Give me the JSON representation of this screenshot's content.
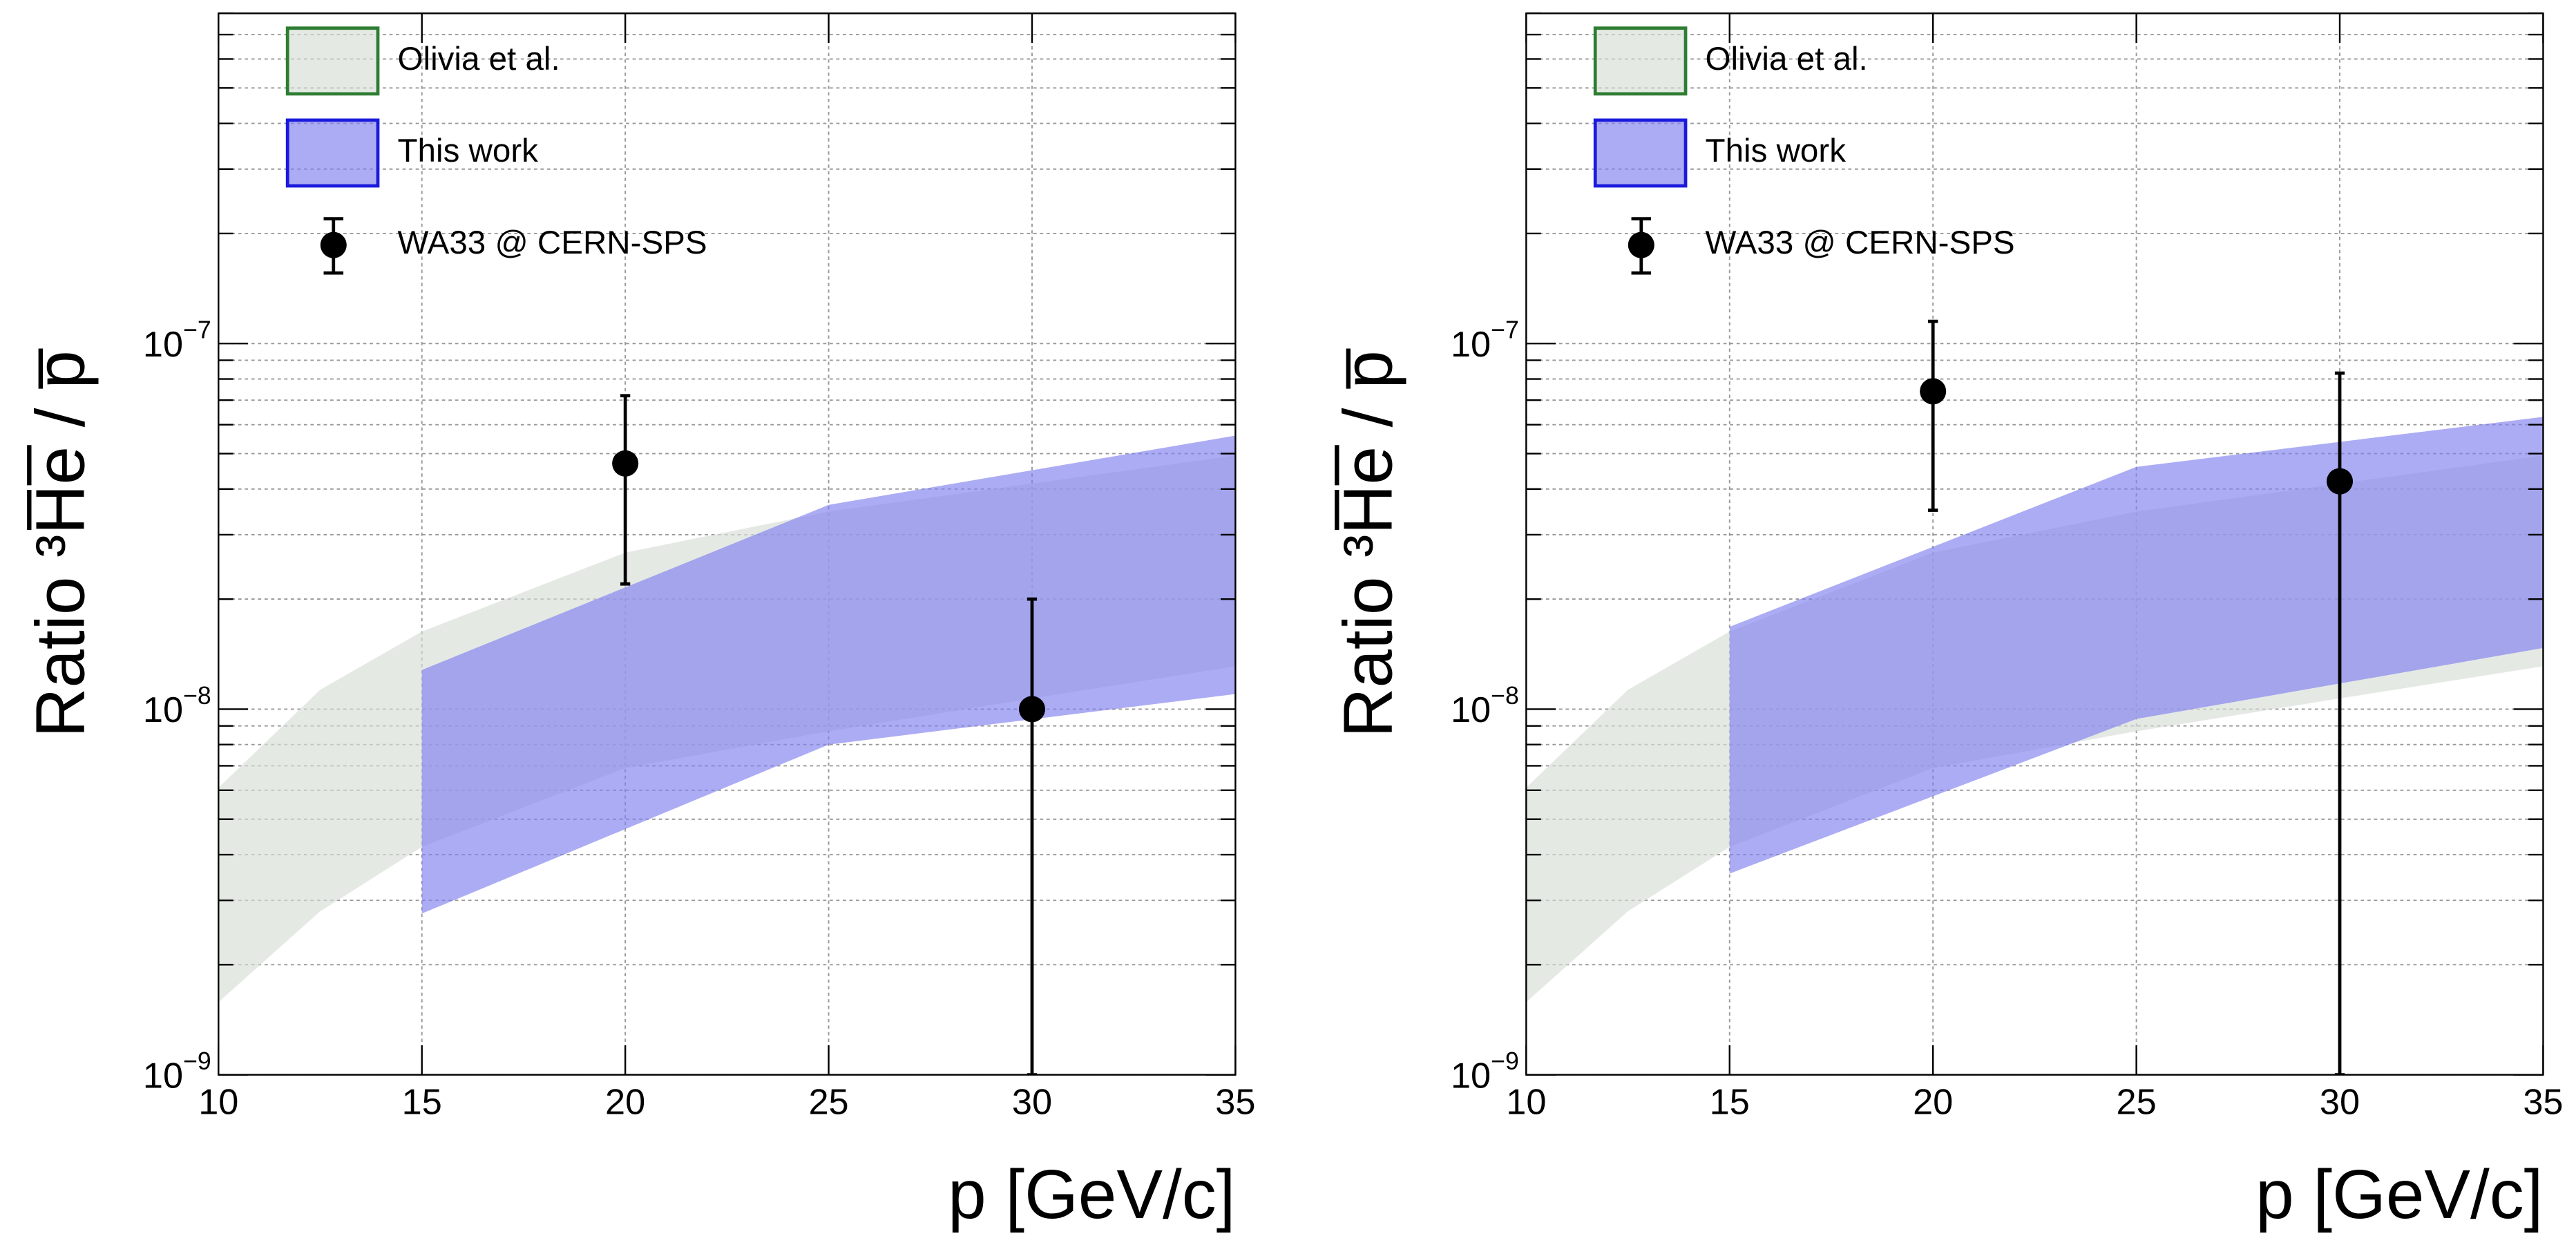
{
  "chart_data": [
    {
      "type": "band",
      "log_y": true,
      "grid": true,
      "xlabel": "p [GeV/c]",
      "ylabel": "Ratio  ³H̅e̅ / p̅",
      "xlim": [
        10,
        35
      ],
      "ylim": [
        1e-09,
        8e-07
      ],
      "xticks": [
        10,
        15,
        20,
        25,
        30,
        35
      ],
      "yticks": [
        {
          "value": 1e-09,
          "label": "10",
          "exponent": "−9"
        },
        {
          "value": 1e-08,
          "label": "10",
          "exponent": "−8"
        },
        {
          "value": 1e-07,
          "label": "10",
          "exponent": "−7"
        }
      ],
      "yminorticks": [
        2e-09,
        3e-09,
        4e-09,
        5e-09,
        6e-09,
        7e-09,
        8e-09,
        9e-09,
        2e-08,
        3e-08,
        4e-08,
        5e-08,
        6e-08,
        7e-08,
        8e-08,
        9e-08,
        2e-07,
        3e-07,
        4e-07,
        5e-07,
        6e-07,
        7e-07,
        8e-07
      ],
      "series": [
        {
          "name": "Olivia et al.",
          "kind": "band",
          "color": "#d5ddd5",
          "edge": "#2e7d32",
          "x": [
            10,
            12.5,
            15,
            20,
            25,
            30,
            35
          ],
          "lower": [
            1.58e-09,
            2.8e-09,
            4.2e-09,
            6.9e-09,
            8.7e-09,
            1.07e-08,
            1.31e-08
          ],
          "upper": [
            6.1e-09,
            1.13e-08,
            1.63e-08,
            2.68e-08,
            3.47e-08,
            4.14e-08,
            4.94e-08
          ]
        },
        {
          "name": "This work",
          "kind": "band",
          "color": "#8080f0",
          "edge": "#1a1adc",
          "x": [
            15,
            25,
            35
          ],
          "lower": [
            2.76e-09,
            8e-09,
            1.1e-08
          ],
          "upper": [
            1.28e-08,
            3.62e-08,
            5.6e-08
          ]
        },
        {
          "name": "WA33 @ CERN-SPS",
          "kind": "points",
          "color": "#000000",
          "x": [
            20,
            30
          ],
          "values": [
            4.7e-08,
            1e-08
          ],
          "error_low": [
            2.2e-08,
            1e-09
          ],
          "error_high": [
            7.2e-08,
            2e-08
          ]
        }
      ]
    },
    {
      "type": "band",
      "log_y": true,
      "grid": true,
      "xlabel": "p [GeV/c]",
      "ylabel": "Ratio  ³H̅e̅ / p̅",
      "xlim": [
        10,
        35
      ],
      "ylim": [
        1e-09,
        8e-07
      ],
      "xticks": [
        10,
        15,
        20,
        25,
        30,
        35
      ],
      "yticks": [
        {
          "value": 1e-09,
          "label": "10",
          "exponent": "−9"
        },
        {
          "value": 1e-08,
          "label": "10",
          "exponent": "−8"
        },
        {
          "value": 1e-07,
          "label": "10",
          "exponent": "−7"
        }
      ],
      "yminorticks": [
        2e-09,
        3e-09,
        4e-09,
        5e-09,
        6e-09,
        7e-09,
        8e-09,
        9e-09,
        2e-08,
        3e-08,
        4e-08,
        5e-08,
        6e-08,
        7e-08,
        8e-08,
        9e-08,
        2e-07,
        3e-07,
        4e-07,
        5e-07,
        6e-07,
        7e-07,
        8e-07
      ],
      "series": [
        {
          "name": "Olivia et al.",
          "kind": "band",
          "color": "#d5ddd5",
          "edge": "#2e7d32",
          "x": [
            10,
            12.5,
            15,
            20,
            25,
            30,
            35
          ],
          "lower": [
            1.58e-09,
            2.8e-09,
            4.2e-09,
            6.9e-09,
            8.7e-09,
            1.07e-08,
            1.31e-08
          ],
          "upper": [
            6.1e-09,
            1.13e-08,
            1.63e-08,
            2.68e-08,
            3.47e-08,
            4.14e-08,
            4.94e-08
          ]
        },
        {
          "name": "This work",
          "kind": "band",
          "color": "#8080f0",
          "edge": "#1a1adc",
          "x": [
            15,
            25,
            35
          ],
          "lower": [
            3.55e-09,
            9.4e-09,
            1.47e-08
          ],
          "upper": [
            1.68e-08,
            4.6e-08,
            6.3e-08
          ]
        },
        {
          "name": "WA33 @ CERN-SPS",
          "kind": "points",
          "color": "#000000",
          "x": [
            20,
            30
          ],
          "values": [
            7.4e-08,
            4.2e-08
          ],
          "error_low": [
            3.5e-08,
            1e-09
          ],
          "error_high": [
            1.15e-07,
            8.3e-08
          ]
        }
      ]
    }
  ]
}
